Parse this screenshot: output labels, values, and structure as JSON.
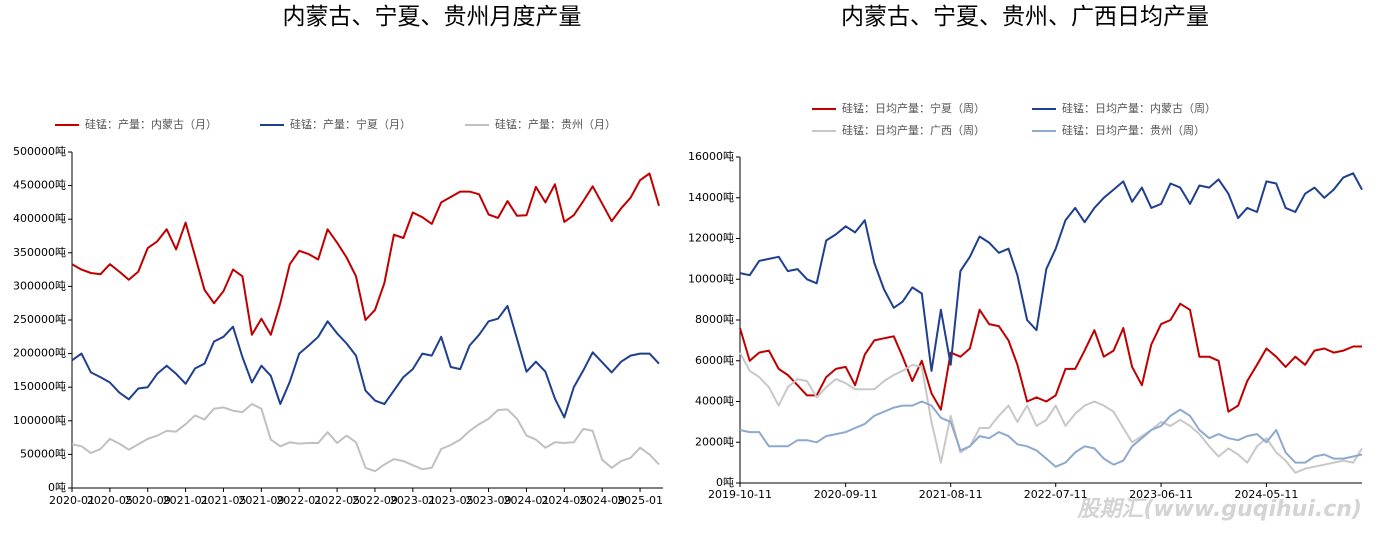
{
  "chart_data": [
    {
      "type": "line",
      "title": "内蒙古、宁夏、贵州月度产量",
      "categories": [
        "2020-01",
        null,
        null,
        null,
        "2020-05",
        null,
        null,
        null,
        "2020-09",
        null,
        null,
        null,
        "2021-01",
        null,
        null,
        null,
        "2021-05",
        null,
        null,
        null,
        "2021-09",
        null,
        null,
        null,
        "2022-01",
        null,
        null,
        null,
        "2022-05",
        null,
        null,
        null,
        "2022-09",
        null,
        null,
        null,
        "2023-01",
        null,
        null,
        null,
        "2023-05",
        null,
        null,
        null,
        "2023-09",
        null,
        null,
        null,
        "2024-01",
        null,
        null,
        null,
        "2024-05",
        null,
        null,
        null,
        "2024-09",
        null,
        null,
        null,
        "2025-01",
        null,
        null
      ],
      "ylim": [
        0,
        500000
      ],
      "yticks": [
        {
          "value": 0,
          "label": "0吨"
        },
        {
          "value": 50000,
          "label": "50000吨"
        },
        {
          "value": 100000,
          "label": "100000吨"
        },
        {
          "value": 150000,
          "label": "150000吨"
        },
        {
          "value": 200000,
          "label": "200000吨"
        },
        {
          "value": 250000,
          "label": "250000吨"
        },
        {
          "value": 300000,
          "label": "300000吨"
        },
        {
          "value": 350000,
          "label": "350000吨"
        },
        {
          "value": 400000,
          "label": "400000吨"
        },
        {
          "value": 450000,
          "label": "450000吨"
        },
        {
          "value": 500000,
          "label": "500000吨"
        }
      ],
      "series": [
        {
          "name": "硅锰：产量：内蒙古（月）",
          "color": "#c00000",
          "values": [
            333000,
            325000,
            320000,
            318000,
            333000,
            322000,
            310000,
            322000,
            357000,
            367000,
            385000,
            355000,
            395000,
            345000,
            295000,
            275000,
            293000,
            325000,
            315000,
            228000,
            252000,
            228000,
            275000,
            333000,
            353000,
            348000,
            340000,
            385000,
            365000,
            343000,
            315000,
            250000,
            265000,
            305000,
            377000,
            372000,
            410000,
            403000,
            393000,
            425000,
            433000,
            441000,
            441000,
            437000,
            407000,
            402000,
            427000,
            405000,
            406000,
            448000,
            425000,
            452000,
            396000,
            406000,
            427000,
            449000,
            423000,
            397000,
            416000,
            432000,
            458000,
            468000,
            420000
          ]
        },
        {
          "name": "硅锰：产量：宁夏（月）",
          "color": "#1f3f8f",
          "values": [
            190000,
            200000,
            172000,
            165000,
            157000,
            142000,
            132000,
            148000,
            150000,
            170000,
            182000,
            170000,
            155000,
            178000,
            185000,
            218000,
            225000,
            240000,
            195000,
            157000,
            182000,
            167000,
            125000,
            158000,
            200000,
            212000,
            225000,
            248000,
            230000,
            215000,
            197000,
            145000,
            130000,
            125000,
            145000,
            165000,
            177000,
            200000,
            197000,
            225000,
            180000,
            177000,
            212000,
            228000,
            248000,
            252000,
            271000,
            222000,
            173000,
            188000,
            173000,
            133000,
            105000,
            150000,
            175000,
            202000,
            187000,
            172000,
            188000,
            197000,
            200000,
            200000,
            185000
          ]
        },
        {
          "name": "硅锰：产量：贵州（月）",
          "color": "#c0c0c0",
          "values": [
            65000,
            62000,
            52000,
            58000,
            73000,
            66000,
            57000,
            65000,
            73000,
            78000,
            85000,
            84000,
            95000,
            108000,
            102000,
            118000,
            120000,
            115000,
            113000,
            125000,
            118000,
            72000,
            62000,
            68000,
            66000,
            67000,
            67000,
            83000,
            67000,
            78000,
            68000,
            30000,
            25000,
            35000,
            43000,
            40000,
            34000,
            28000,
            30000,
            58000,
            64000,
            72000,
            85000,
            95000,
            103000,
            116000,
            117000,
            103000,
            78000,
            72000,
            60000,
            68000,
            67000,
            68000,
            88000,
            85000,
            42000,
            30000,
            40000,
            45000,
            60000,
            50000,
            35000
          ]
        }
      ]
    },
    {
      "type": "line",
      "title": "内蒙古、宁夏、贵州、广西日均产量",
      "x": [
        "2019-10-11",
        "2019-11-11",
        "2019-12-11",
        "2020-01-11",
        "2020-02-11",
        "2020-03-11",
        "2020-04-11",
        "2020-05-11",
        "2020-06-11",
        "2020-07-11",
        "2020-08-11",
        "2020-09-11",
        "2020-10-11",
        "2020-11-11",
        "2020-12-11",
        "2021-01-11",
        "2021-02-11",
        "2021-03-11",
        "2021-04-11",
        "2021-05-11",
        "2021-06-11",
        "2021-07-11",
        "2021-08-11",
        "2021-09-11",
        "2021-10-11",
        "2021-11-11",
        "2021-12-11",
        "2022-01-11",
        "2022-02-11",
        "2022-03-11",
        "2022-04-11",
        "2022-05-11",
        "2022-06-11",
        "2022-07-11",
        "2022-08-11",
        "2022-09-11",
        "2022-10-11",
        "2022-11-11",
        "2022-12-11",
        "2023-01-11",
        "2023-02-11",
        "2023-03-11",
        "2023-04-11",
        "2023-05-11",
        "2023-06-11",
        "2023-07-11",
        "2023-08-11",
        "2023-09-11",
        "2023-10-11",
        "2023-11-11",
        "2023-12-11",
        "2024-01-11",
        "2024-02-11",
        "2024-03-11",
        "2024-04-11",
        "2024-05-11",
        "2024-06-11",
        "2024-07-11",
        "2024-08-11",
        "2024-09-11",
        "2024-10-11",
        "2024-11-11",
        "2024-12-11",
        "2025-01-11",
        "2025-02-11",
        "2025-03-11"
      ],
      "xlim": [
        "2019-10-11",
        "2025-03-11"
      ],
      "xticks": [
        "2019-10-11",
        "2020-09-11",
        "2021-08-11",
        "2022-07-11",
        "2023-06-11",
        "2024-05-11"
      ],
      "ylim": [
        0,
        16000
      ],
      "yticks": [
        {
          "value": 0,
          "label": "0吨"
        },
        {
          "value": 2000,
          "label": "2000吨"
        },
        {
          "value": 4000,
          "label": "4000吨"
        },
        {
          "value": 6000,
          "label": "6000吨"
        },
        {
          "value": 8000,
          "label": "8000吨"
        },
        {
          "value": 10000,
          "label": "10000吨"
        },
        {
          "value": 12000,
          "label": "12000吨"
        },
        {
          "value": 14000,
          "label": "14000吨"
        },
        {
          "value": 16000,
          "label": "16000吨"
        }
      ],
      "series": [
        {
          "name": "硅锰：日均产量：宁夏（周）",
          "color": "#c00000",
          "values": [
            7600,
            6000,
            6400,
            6500,
            5600,
            5300,
            4800,
            4300,
            4300,
            5200,
            5600,
            5700,
            4800,
            6300,
            7000,
            7100,
            7200,
            6200,
            5000,
            6000,
            4400,
            3600,
            6400,
            6200,
            6600,
            8500,
            7800,
            7700,
            7000,
            5800,
            4000,
            4200,
            4000,
            4300,
            5600,
            5600,
            6500,
            7500,
            6200,
            6500,
            7600,
            5700,
            4800,
            6800,
            7800,
            8000,
            8800,
            8500,
            6200,
            6200,
            6000,
            3500,
            3800,
            5000,
            5800,
            6600,
            6200,
            5700,
            6200,
            5800,
            6500,
            6600,
            6400,
            6500,
            6700,
            6700
          ]
        },
        {
          "name": "硅锰：日均产量：内蒙古（周）",
          "color": "#1f3f8f",
          "values": [
            10300,
            10200,
            10900,
            11000,
            11100,
            10400,
            10500,
            10000,
            9800,
            11900,
            12200,
            12600,
            12300,
            12900,
            10800,
            9500,
            8600,
            8900,
            9600,
            9300,
            5500,
            8500,
            5800,
            10400,
            11100,
            12100,
            11800,
            11300,
            11500,
            10200,
            8000,
            7500,
            10500,
            11500,
            12900,
            13500,
            12800,
            13500,
            14000,
            14400,
            14800,
            13800,
            14500,
            13500,
            13700,
            14700,
            14500,
            13700,
            14600,
            14500,
            14900,
            14200,
            13000,
            13500,
            13300,
            14800,
            14700,
            13500,
            13300,
            14200,
            14500,
            14000,
            14400,
            15000,
            15200,
            14400
          ]
        },
        {
          "name": "硅锰：日均产量：广西（周）",
          "color": "#c8c8c8",
          "values": [
            6400,
            5500,
            5200,
            4700,
            3800,
            4700,
            5100,
            5000,
            4200,
            4700,
            5100,
            4900,
            4600,
            4600,
            4600,
            5000,
            5300,
            5500,
            5800,
            5700,
            3000,
            1000,
            3300,
            1500,
            1800,
            2700,
            2700,
            3300,
            3800,
            3000,
            3800,
            2800,
            3100,
            3800,
            2800,
            3400,
            3800,
            4000,
            3800,
            3500,
            2700,
            2000,
            2300,
            2600,
            3000,
            2800,
            3100,
            2800,
            2400,
            1800,
            1300,
            1700,
            1400,
            1000,
            1800,
            2200,
            1500,
            1100,
            500,
            700,
            800,
            900,
            1000,
            1100,
            1000,
            1700
          ]
        },
        {
          "name": "硅锰：日均产量：贵州（周）",
          "color": "#8ea9cf",
          "values": [
            2600,
            2500,
            2500,
            1800,
            1800,
            1800,
            2100,
            2100,
            2000,
            2300,
            2400,
            2500,
            2700,
            2900,
            3300,
            3500,
            3700,
            3800,
            3800,
            4000,
            3800,
            3200,
            3000,
            1600,
            1800,
            2300,
            2200,
            2500,
            2300,
            1900,
            1800,
            1600,
            1200,
            800,
            1000,
            1500,
            1800,
            1700,
            1200,
            900,
            1100,
            1800,
            2200,
            2600,
            2800,
            3300,
            3600,
            3300,
            2600,
            2200,
            2400,
            2200,
            2100,
            2300,
            2400,
            2000,
            2600,
            1500,
            1000,
            1000,
            1300,
            1400,
            1200,
            1200,
            1300,
            1400
          ]
        }
      ]
    }
  ],
  "watermark": "股期汇(www.guqihui.cn)"
}
